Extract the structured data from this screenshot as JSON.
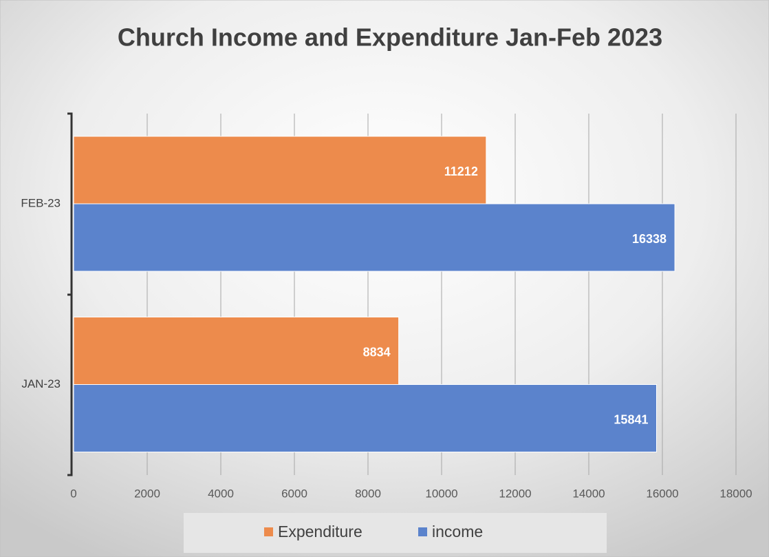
{
  "chart_data": {
    "type": "hbar",
    "title": "Church Income and Expenditure Jan-Feb 2023",
    "categories": [
      "FEB-23",
      "JAN-23"
    ],
    "series": [
      {
        "name": "Expenditure",
        "color": "#ed8b4c",
        "values": [
          11212,
          8834
        ]
      },
      {
        "name": "income",
        "color": "#5b83cc",
        "values": [
          16338,
          15841
        ]
      }
    ],
    "xlim": [
      0,
      18000
    ],
    "xticks": [
      0,
      2000,
      4000,
      6000,
      8000,
      10000,
      12000,
      14000,
      16000,
      18000
    ],
    "grid": true,
    "legend": "bottom"
  }
}
